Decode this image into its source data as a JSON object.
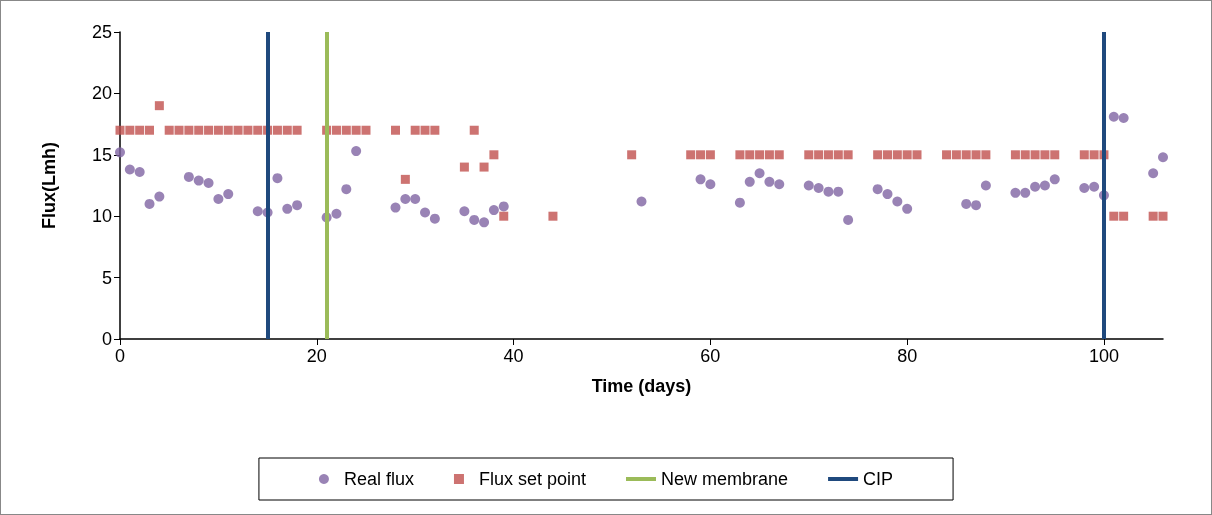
{
  "chart_data": {
    "type": "scatter",
    "xlabel": "Time (days)",
    "ylabel": "Flux(Lmh)",
    "xlim": [
      0,
      106
    ],
    "xticks": [
      0,
      20,
      40,
      60,
      80,
      100
    ],
    "ylim": [
      0,
      25
    ],
    "yticks": [
      0,
      5,
      10,
      15,
      20,
      25
    ],
    "grid": false,
    "legend": "bottom",
    "series": [
      {
        "name": "Real flux",
        "color": "#8064a2",
        "marker": "circle",
        "x": [
          0,
          1,
          2,
          3,
          4,
          7,
          8,
          9,
          10,
          11,
          14,
          15,
          16,
          17,
          18,
          21,
          22,
          23,
          24,
          28,
          29,
          30,
          31,
          32,
          35,
          36,
          37,
          38,
          39,
          53,
          59,
          60,
          63,
          64,
          65,
          66,
          67,
          70,
          71,
          72,
          73,
          74,
          77,
          78,
          79,
          80,
          86,
          87,
          88,
          91,
          92,
          93,
          94,
          95,
          98,
          99,
          100,
          101,
          102,
          105,
          106
        ],
        "values": [
          15.2,
          13.8,
          13.6,
          11.0,
          11.6,
          13.2,
          12.9,
          12.7,
          11.4,
          11.8,
          10.4,
          10.3,
          13.1,
          10.6,
          10.9,
          9.9,
          10.2,
          12.2,
          15.3,
          10.7,
          11.4,
          11.4,
          10.3,
          9.8,
          10.4,
          9.7,
          9.5,
          10.5,
          10.8,
          11.2,
          13.0,
          12.6,
          11.1,
          12.8,
          13.5,
          12.8,
          12.6,
          12.5,
          12.3,
          12.0,
          12.0,
          9.7,
          12.2,
          11.8,
          11.2,
          10.6,
          11.0,
          10.9,
          12.5,
          11.9,
          11.9,
          12.4,
          12.5,
          13.0,
          12.3,
          12.4,
          11.7,
          18.1,
          18.0,
          13.5,
          14.8
        ]
      },
      {
        "name": "Flux set point",
        "color": "#c0504d",
        "marker": "square",
        "x": [
          0,
          1,
          2,
          3,
          4,
          5,
          6,
          7,
          8,
          9,
          10,
          11,
          12,
          13,
          14,
          15,
          16,
          17,
          18,
          21,
          22,
          23,
          24,
          25,
          28,
          29,
          30,
          31,
          32,
          35,
          36,
          37,
          38,
          39,
          44,
          52,
          58,
          59,
          60,
          63,
          64,
          65,
          66,
          67,
          70,
          71,
          72,
          73,
          74,
          77,
          78,
          79,
          80,
          81,
          84,
          85,
          86,
          87,
          88,
          91,
          92,
          93,
          94,
          95,
          98,
          99,
          100,
          101,
          102,
          105,
          106
        ],
        "values": [
          17,
          17,
          17,
          17,
          19,
          17,
          17,
          17,
          17,
          17,
          17,
          17,
          17,
          17,
          17,
          17,
          17,
          17,
          17,
          17,
          17,
          17,
          17,
          17,
          17,
          13,
          17,
          17,
          17,
          14,
          17,
          14,
          15,
          10,
          10,
          15,
          15,
          15,
          15,
          15,
          15,
          15,
          15,
          15,
          15,
          15,
          15,
          15,
          15,
          15,
          15,
          15,
          15,
          15,
          15,
          15,
          15,
          15,
          15,
          15,
          15,
          15,
          15,
          15,
          15,
          15,
          15,
          10,
          10,
          10,
          10
        ]
      }
    ],
    "ref_lines": [
      {
        "axis": "x",
        "value": 15,
        "label": "CIP",
        "color": "#1f497d"
      },
      {
        "axis": "x",
        "value": 21,
        "label": "New membrane",
        "color": "#9bbb59"
      },
      {
        "axis": "x",
        "value": 100,
        "color": "#1f497d"
      }
    ]
  }
}
